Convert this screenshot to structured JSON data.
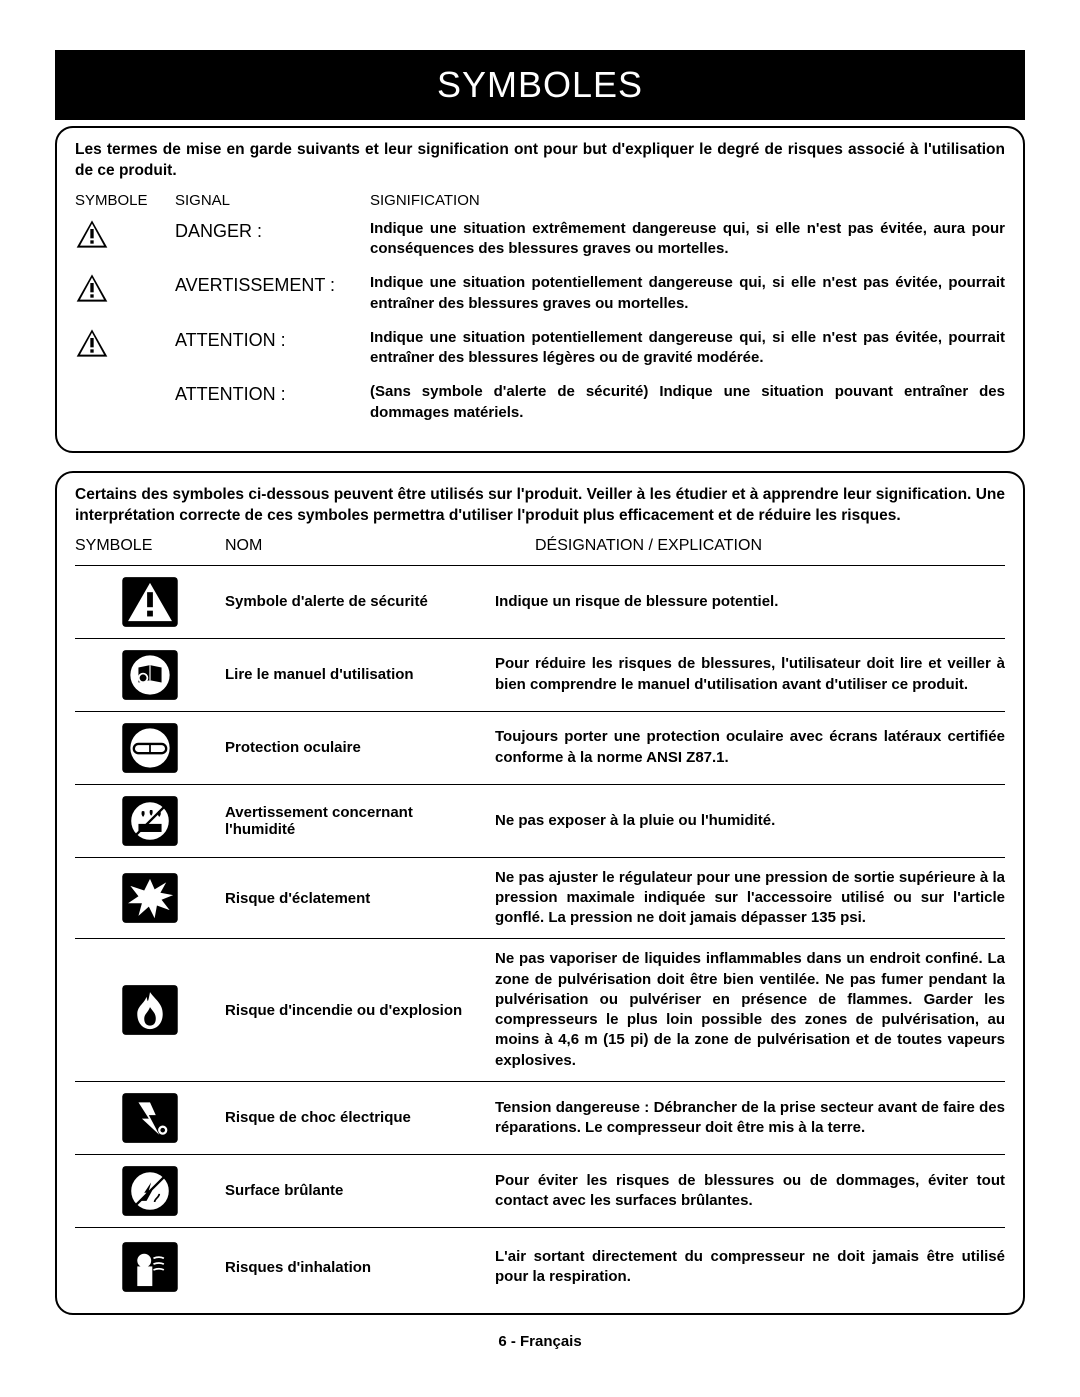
{
  "title": "SYMBOLES",
  "box1": {
    "intro": "Les termes de mise en garde suivants et leur signification ont pour but d'expliquer le degré de risques associé à l'utilisation de ce produit.",
    "headers": {
      "symbole": "SYMBOLE",
      "signal": "SIGNAL",
      "signification": "SIGNIFICATION"
    },
    "rows": [
      {
        "icon": true,
        "label": "DANGER :",
        "desc": "Indique une situation extrêmement dangereuse qui, si elle n'est pas évitée, aura pour conséquences des blessures graves ou mortelles."
      },
      {
        "icon": true,
        "label": "AVERTISSEMENT :",
        "desc": "Indique une situation potentiellement dangereuse qui, si elle n'est pas évitée, pourrait entraîner des blessures graves ou mortelles."
      },
      {
        "icon": true,
        "label": "ATTENTION :",
        "desc": "Indique une situation potentiellement dangereuse qui, si elle n'est pas évitée, pourrait entraîner des blessures légères ou de gravité modérée."
      },
      {
        "icon": false,
        "label": "ATTENTION :",
        "desc": "(Sans symbole d'alerte de sécurité) Indique une situation pouvant entraîner des dommages matériels."
      }
    ]
  },
  "box2": {
    "intro": "Certains des symboles ci-dessous peuvent être utilisés sur l'produit. Veiller à les étudier et à apprendre leur signification. Une interprétation correcte de ces symboles permettra d'utiliser l'produit plus efficacement et de réduire les risques.",
    "headers": {
      "symbole": "SYMBOLE",
      "nom": "NOM",
      "designation": "DÉSIGNATION / EXPLICATION"
    },
    "rows": [
      {
        "icon": "alert-triangle",
        "name": "Symbole d'alerte de sécurité",
        "expl": "Indique un risque de blessure potentiel."
      },
      {
        "icon": "read-manual",
        "name": "Lire le manuel d'utilisation",
        "expl": "Pour réduire les risques de blessures, l'utilisateur doit lire et veiller à bien comprendre le manuel d'utilisation avant d'utiliser ce produit."
      },
      {
        "icon": "eye-protection",
        "name": "Protection oculaire",
        "expl": "Toujours porter une protection oculaire avec écrans latéraux certifiée conforme à la norme ANSI Z87.1."
      },
      {
        "icon": "wet-warning",
        "name": "Avertissement concernant l'humidité",
        "expl": "Ne pas exposer à la pluie ou l'humidité."
      },
      {
        "icon": "burst-hazard",
        "name": "Risque d'éclatement",
        "expl": "Ne pas ajuster le régulateur pour une pression de sortie supérieure à la pression maximale indiquée sur l'accessoire utilisé ou sur l'article gonflé. La pression ne doit jamais dépasser 135 psi."
      },
      {
        "icon": "fire-hazard",
        "name": "Risque d'incendie ou d'explosion",
        "expl": "Ne pas vaporiser de liquides inflammables dans un endroit confiné. La zone de pulvérisation doit être bien ventilée. Ne pas fumer pendant la pulvérisation ou pulvériser en présence de flammes. Garder les compresseurs le plus loin possible des zones de pulvérisation, au moins à 4,6 m (15 pi) de la zone de pulvérisation et de toutes vapeurs explosives."
      },
      {
        "icon": "shock-hazard",
        "name": "Risque de choc électrique",
        "expl": "Tension dangereuse : Débrancher de la prise secteur avant de faire des réparations. Le compresseur doit être mis à la terre."
      },
      {
        "icon": "hot-surface",
        "name": "Surface brûlante",
        "expl": "Pour éviter les risques de blessures ou de dommages, éviter tout contact avec les surfaces brûlantes."
      },
      {
        "icon": "inhalation",
        "name": "Risques d'inhalation",
        "expl": "L'air sortant directement du compresseur ne doit jamais être utilisé pour la respiration."
      }
    ]
  },
  "footer": "6 - Français"
}
